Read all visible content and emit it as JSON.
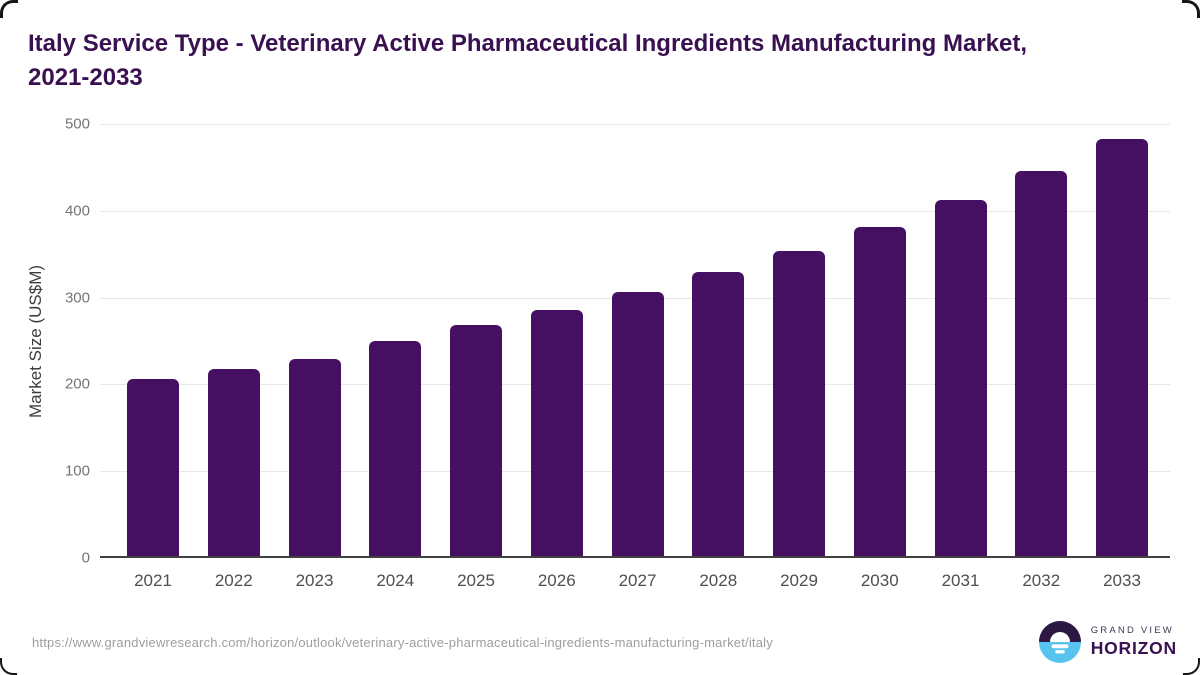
{
  "header": {
    "title_line1": "Italy Service Type - Veterinary Active Pharmaceutical Ingredients Manufacturing Market,",
    "title_line2": "2021-2033"
  },
  "chart_data": {
    "type": "bar",
    "title": "Italy Service Type - Veterinary Active Pharmaceutical Ingredients Manufacturing Market, 2021-2033",
    "categories": [
      "2021",
      "2022",
      "2023",
      "2024",
      "2025",
      "2026",
      "2027",
      "2028",
      "2029",
      "2030",
      "2031",
      "2032",
      "2033"
    ],
    "values": [
      204,
      215,
      227,
      248,
      266,
      284,
      304,
      327,
      351,
      379,
      410,
      443,
      481
    ],
    "xlabel": "",
    "ylabel": "Market Size (US$M)",
    "ylim": [
      0,
      500
    ],
    "yticks": [
      0,
      100,
      200,
      300,
      400,
      500
    ],
    "grid": true,
    "legend": "none",
    "bar_color": "#451061"
  },
  "footer": {
    "source_url": "https://www.grandviewresearch.com/horizon/outlook/veterinary-active-pharmaceutical-ingredients-manufacturing-market/italy",
    "logo": {
      "line1": "GRAND VIEW",
      "line2": "HORIZON"
    }
  },
  "colors": {
    "bar": "#451061",
    "title_text": "#3a1150",
    "gridline": "#e7e7e7",
    "axis_line": "#404040",
    "y_tick_text": "#757575",
    "x_tick_text": "#4f4f4f",
    "axis_title_text": "#3d3d3d",
    "url_text": "#9e9e9e",
    "logo_navy": "#2c1843",
    "logo_blue": "#57c4f0",
    "logo_white": "#ffffff"
  }
}
